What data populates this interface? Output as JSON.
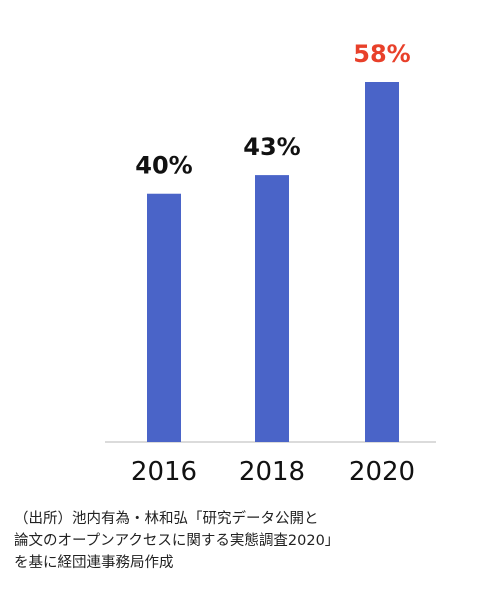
{
  "chart_data": {
    "type": "bar",
    "categories": [
      "2016",
      "2018",
      "2020"
    ],
    "values": [
      40,
      43,
      58
    ],
    "value_labels": [
      "40%",
      "43%",
      "58%"
    ],
    "label_colors": [
      "#111111",
      "#111111",
      "#e8402a"
    ],
    "bar_color": "#4a64c8",
    "axis_color": "#cfcfcf",
    "ylim": [
      0,
      65
    ],
    "grid": false,
    "legend": "none",
    "title": "",
    "xlabel": "",
    "ylabel": ""
  },
  "source_note": {
    "lines": [
      "（出所）池内有為・林和弘「研究データ公開と",
      "論文のオープンアクセスに関する実態調査2020」",
      "を基に経団連事務局作成"
    ]
  }
}
